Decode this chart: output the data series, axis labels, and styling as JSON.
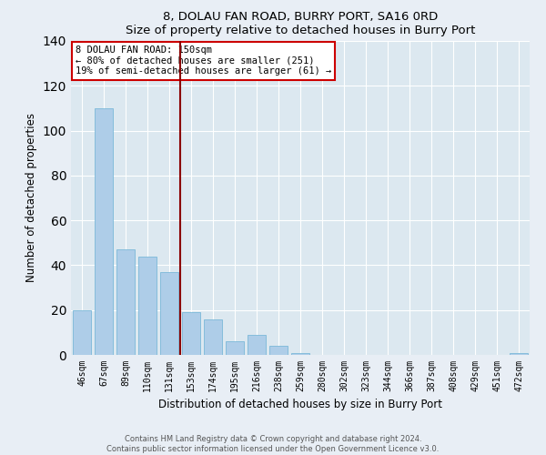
{
  "title": "8, DOLAU FAN ROAD, BURRY PORT, SA16 0RD",
  "subtitle": "Size of property relative to detached houses in Burry Port",
  "xlabel": "Distribution of detached houses by size in Burry Port",
  "ylabel": "Number of detached properties",
  "bar_labels": [
    "46sqm",
    "67sqm",
    "89sqm",
    "110sqm",
    "131sqm",
    "153sqm",
    "174sqm",
    "195sqm",
    "216sqm",
    "238sqm",
    "259sqm",
    "280sqm",
    "302sqm",
    "323sqm",
    "344sqm",
    "366sqm",
    "387sqm",
    "408sqm",
    "429sqm",
    "451sqm",
    "472sqm"
  ],
  "bar_values": [
    20,
    110,
    47,
    44,
    37,
    19,
    16,
    6,
    9,
    4,
    1,
    0,
    0,
    0,
    0,
    0,
    0,
    0,
    0,
    0,
    1
  ],
  "bar_color": "#aecde8",
  "bar_edge_color": "#7ab8d8",
  "vline_color": "#8b0000",
  "annotation_title": "8 DOLAU FAN ROAD: 150sqm",
  "annotation_line1": "← 80% of detached houses are smaller (251)",
  "annotation_line2": "19% of semi-detached houses are larger (61) →",
  "annotation_box_color": "#ffffff",
  "annotation_box_edge": "#cc0000",
  "ylim": [
    0,
    140
  ],
  "footer1": "Contains HM Land Registry data © Crown copyright and database right 2024.",
  "footer2": "Contains public sector information licensed under the Open Government Licence v3.0.",
  "bg_color": "#e8eef5",
  "plot_bg_color": "#dce8f0"
}
